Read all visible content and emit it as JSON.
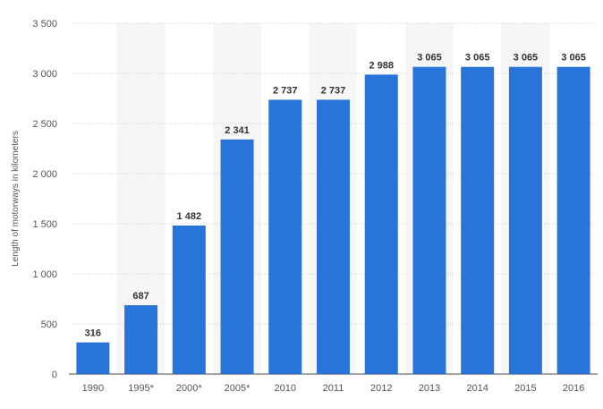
{
  "chart_data": {
    "type": "bar",
    "title": "",
    "xlabel": "",
    "ylabel": "Length of motorways in kilometers",
    "categories": [
      "1990",
      "1995*",
      "2000*",
      "2005*",
      "2010",
      "2011",
      "2012",
      "2013",
      "2014",
      "2015",
      "2016"
    ],
    "values": [
      316,
      687,
      1482,
      2341,
      2737,
      2737,
      2988,
      3065,
      3065,
      3065,
      3065
    ],
    "value_labels": [
      "316",
      "687",
      "1 482",
      "2 341",
      "2 737",
      "2 737",
      "2 988",
      "3 065",
      "3 065",
      "3 065",
      "3 065"
    ],
    "ylim": [
      0,
      3500
    ],
    "yticks": [
      0,
      500,
      1000,
      1500,
      2000,
      2500,
      3000,
      3500
    ],
    "ytick_labels": [
      "0",
      "500",
      "1 000",
      "1 500",
      "2 000",
      "2 500",
      "3 000",
      "3 500"
    ],
    "grid": true,
    "bar_color": "#2874d9",
    "band_color": "#f6f6f6"
  }
}
